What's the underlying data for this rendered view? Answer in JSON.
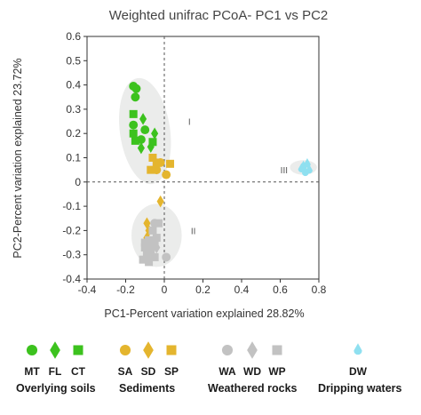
{
  "chart_data": {
    "type": "scatter",
    "title": "Weighted unifrac PCoA- PC1 vs PC2",
    "xlabel": "PC1-Percent variation explained 28.82%",
    "ylabel": "PC2-Percent variation explained 23.72%",
    "xlim": [
      -0.4,
      0.8
    ],
    "ylim": [
      -0.4,
      0.6
    ],
    "xticks": [
      "-0.4",
      "-0.2",
      "0",
      "0.2",
      "0.4",
      "0.6",
      "0.8"
    ],
    "yticks": [
      "-0.4",
      "-0.3",
      "-0.2",
      "-0.1",
      "0",
      "0.1",
      "0.2",
      "0.3",
      "0.4",
      "0.5",
      "0.6"
    ],
    "grid": false,
    "reference_lines": {
      "x": 0,
      "y": 0,
      "style": "dashed"
    },
    "clusters": [
      {
        "label": "I",
        "center": [
          -0.1,
          0.21
        ],
        "radius": [
          0.13,
          0.22
        ],
        "label_at": [
          0.13,
          0.25
        ]
      },
      {
        "label": "II",
        "center": [
          -0.04,
          -0.22
        ],
        "radius": [
          0.13,
          0.13
        ],
        "label_at": [
          0.15,
          -0.2
        ]
      },
      {
        "label": "III",
        "center": [
          0.72,
          0.06
        ],
        "radius": [
          0.07,
          0.03
        ],
        "label_at": [
          0.62,
          0.05
        ]
      }
    ],
    "colors": {
      "green": "#3cc21e",
      "orange": "#e4b52e",
      "gray": "#c2c2c2",
      "cyan": "#8fe0f0"
    },
    "series": [
      {
        "name": "MT",
        "marker": "circle",
        "color": "#3cc21e",
        "points": [
          [
            -0.16,
            0.395
          ],
          [
            -0.145,
            0.385
          ],
          [
            -0.15,
            0.35
          ],
          [
            -0.16,
            0.235
          ],
          [
            -0.1,
            0.215
          ],
          [
            -0.12,
            0.175
          ]
        ]
      },
      {
        "name": "FL",
        "marker": "diamond",
        "color": "#3cc21e",
        "points": [
          [
            -0.11,
            0.26
          ],
          [
            -0.05,
            0.2
          ],
          [
            -0.12,
            0.14
          ],
          [
            -0.07,
            0.145
          ]
        ]
      },
      {
        "name": "CT",
        "marker": "square",
        "color": "#3cc21e",
        "points": [
          [
            -0.16,
            0.28
          ],
          [
            -0.16,
            0.2
          ],
          [
            -0.15,
            0.17
          ],
          [
            -0.06,
            0.165
          ]
        ]
      },
      {
        "name": "SA",
        "marker": "circle",
        "color": "#e4b52e",
        "points": [
          [
            -0.02,
            0.08
          ],
          [
            -0.04,
            0.05
          ],
          [
            0.01,
            0.03
          ]
        ]
      },
      {
        "name": "SD",
        "marker": "diamond",
        "color": "#e4b52e",
        "points": [
          [
            -0.02,
            -0.08
          ],
          [
            -0.09,
            -0.17
          ],
          [
            -0.08,
            -0.2
          ],
          [
            -0.09,
            -0.23
          ]
        ]
      },
      {
        "name": "SP",
        "marker": "square",
        "color": "#e4b52e",
        "points": [
          [
            -0.06,
            0.1
          ],
          [
            -0.07,
            0.05
          ],
          [
            -0.04,
            0.08
          ],
          [
            0.03,
            0.075
          ]
        ]
      },
      {
        "name": "WA",
        "marker": "circle",
        "color": "#c2c2c2",
        "points": [
          [
            -0.05,
            -0.17
          ],
          [
            0.01,
            -0.31
          ]
        ]
      },
      {
        "name": "WD",
        "marker": "diamond",
        "color": "#c2c2c2",
        "points": [
          [
            -0.07,
            -0.25
          ],
          [
            -0.09,
            -0.29
          ],
          [
            -0.04,
            -0.27
          ]
        ]
      },
      {
        "name": "WP",
        "marker": "square",
        "color": "#c2c2c2",
        "points": [
          [
            -0.03,
            -0.17
          ],
          [
            -0.06,
            -0.2
          ],
          [
            -0.04,
            -0.23
          ],
          [
            -0.05,
            -0.25
          ],
          [
            -0.08,
            -0.24
          ],
          [
            -0.06,
            -0.26
          ],
          [
            -0.1,
            -0.27
          ],
          [
            -0.09,
            -0.3
          ],
          [
            -0.11,
            -0.32
          ],
          [
            -0.08,
            -0.33
          ],
          [
            -0.05,
            -0.31
          ],
          [
            -0.1,
            -0.25
          ],
          [
            -0.07,
            -0.28
          ]
        ]
      },
      {
        "name": "DW",
        "marker": "drop",
        "color": "#8fe0f0",
        "points": [
          [
            0.72,
            0.065
          ],
          [
            0.74,
            0.075
          ],
          [
            0.71,
            0.055
          ],
          [
            0.75,
            0.05
          ],
          [
            0.73,
            0.04
          ]
        ]
      }
    ],
    "legend": {
      "placement": "bottom",
      "groups": [
        {
          "label": "Overlying soils",
          "items": [
            "MT",
            "FL",
            "CT"
          ]
        },
        {
          "label": "Sediments",
          "items": [
            "SA",
            "SD",
            "SP"
          ]
        },
        {
          "label": "Weathered rocks",
          "items": [
            "WA",
            "WD",
            "WP"
          ]
        },
        {
          "label": "Dripping waters",
          "items": [
            "DW"
          ]
        }
      ]
    }
  }
}
